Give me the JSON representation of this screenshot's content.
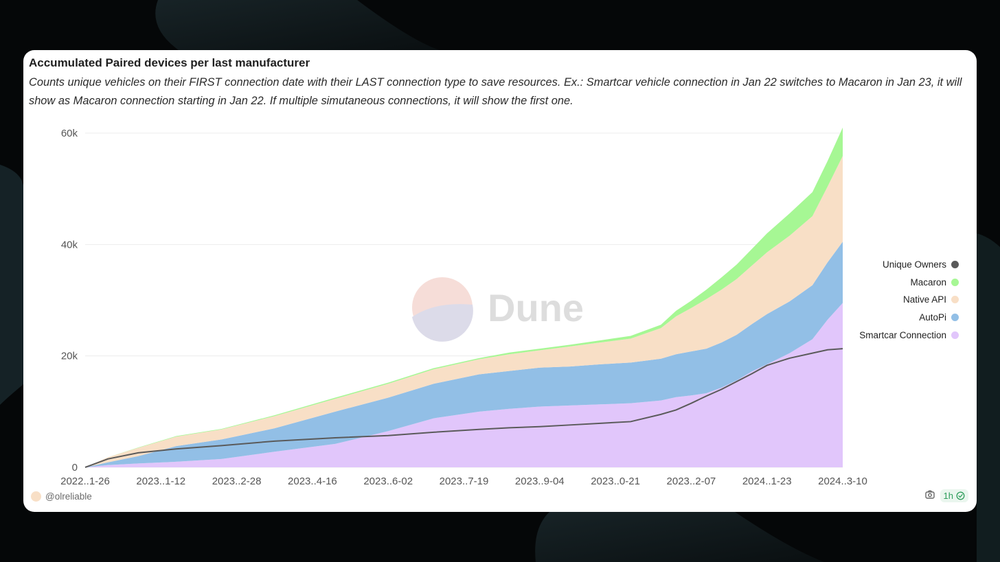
{
  "colors": {
    "smartcar": "#e1c6fb",
    "autopi": "#92bfe6",
    "native_api": "#f8dfc6",
    "macaron": "#a6f794",
    "unique_owners": "#5a5a5a",
    "grid": "#ececec",
    "axis_text": "#555555",
    "author_dot": "#f8dfc6"
  },
  "card": {
    "title": "Accumulated Paired devices per last manufacturer",
    "description": "Counts unique vehicles on their FIRST connection date with their LAST connection type to save resources. Ex.: Smartcar vehicle connection in Jan 22 switches to Macaron in Jan 23, it will show as Macaron connection starting in Jan 22. If multiple simutaneous connections, it will show the first one.",
    "watermark": "Dune",
    "author": "@olreliable",
    "refresh_label": "1h",
    "camera_icon": "camera-icon",
    "check_icon": "check-circle-icon"
  },
  "chart_data": {
    "type": "area",
    "stacked": true,
    "x_ticks": [
      "2022..1-26",
      "2023..1-12",
      "2023..2-28",
      "2023..4-16",
      "2023..6-02",
      "2023..7-19",
      "2023..9-04",
      "2023..0-21",
      "2023..2-07",
      "2024..1-23",
      "2024..3-10"
    ],
    "y_ticks": [
      "0",
      "20k",
      "40k",
      "60k"
    ],
    "ylim": [
      0,
      60000
    ],
    "grid": true,
    "legend_position": "right",
    "x": [
      0,
      3,
      7,
      12,
      18,
      25,
      33,
      40,
      46,
      52,
      56,
      60,
      64,
      68,
      72,
      76,
      78,
      80,
      82,
      84,
      86,
      88,
      90,
      93,
      96,
      98,
      100
    ],
    "series": [
      {
        "name": "Smartcar Connection",
        "type": "area",
        "values": [
          0,
          400,
          700,
          1000,
          1500,
          2800,
          4200,
          6500,
          8800,
          10000,
          10500,
          10900,
          11100,
          11300,
          11500,
          12000,
          12600,
          12900,
          13300,
          14300,
          15600,
          17200,
          18500,
          20500,
          23000,
          26500,
          29500
        ]
      },
      {
        "name": "AutoPi",
        "type": "area",
        "values": [
          0,
          500,
          1300,
          2800,
          3500,
          4200,
          5800,
          6000,
          6200,
          6700,
          6800,
          7000,
          7000,
          7200,
          7300,
          7500,
          7700,
          7900,
          8000,
          8100,
          8200,
          8500,
          9000,
          9300,
          9700,
          10300,
          11000
        ]
      },
      {
        "name": "Native API",
        "type": "area",
        "values": [
          0,
          900,
          1500,
          1700,
          1800,
          2200,
          2300,
          2500,
          2600,
          2700,
          3000,
          3100,
          3600,
          3900,
          4300,
          5500,
          6800,
          7800,
          8900,
          9500,
          10000,
          10500,
          11100,
          11800,
          12400,
          13600,
          15400
        ]
      },
      {
        "name": "Macaron",
        "type": "area",
        "values": [
          0,
          0,
          50,
          100,
          100,
          150,
          200,
          200,
          200,
          200,
          300,
          300,
          300,
          400,
          500,
          600,
          1000,
          1300,
          1700,
          2200,
          2600,
          3000,
          3400,
          4000,
          4300,
          4600,
          5100
        ]
      },
      {
        "name": "Unique Owners",
        "type": "line",
        "values": [
          0,
          1500,
          2600,
          3300,
          3900,
          4700,
          5300,
          5700,
          6300,
          6800,
          7100,
          7300,
          7600,
          7900,
          8200,
          9500,
          10300,
          11500,
          12800,
          14000,
          15400,
          16800,
          18300,
          19600,
          20500,
          21100,
          21300
        ]
      }
    ]
  }
}
